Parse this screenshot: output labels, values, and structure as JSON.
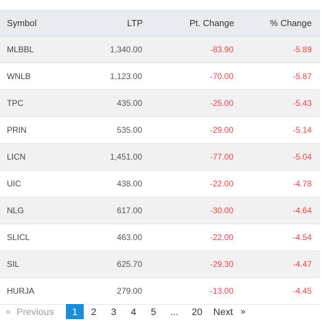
{
  "table": {
    "headers": {
      "symbol": "Symbol",
      "ltp": "LTP",
      "pt_change": "Pt. Change",
      "pct_change": "% Change"
    },
    "rows": [
      {
        "symbol": "MLBBL",
        "ltp": "1,340.00",
        "pt_change": "-83.90",
        "pct_change": "-5.89"
      },
      {
        "symbol": "WNLB",
        "ltp": "1,123.00",
        "pt_change": "-70.00",
        "pct_change": "-5.87"
      },
      {
        "symbol": "TPC",
        "ltp": "435.00",
        "pt_change": "-25.00",
        "pct_change": "-5.43"
      },
      {
        "symbol": "PRIN",
        "ltp": "535.00",
        "pt_change": "-29.00",
        "pct_change": "-5.14"
      },
      {
        "symbol": "LICN",
        "ltp": "1,451.00",
        "pt_change": "-77.00",
        "pct_change": "-5.04"
      },
      {
        "symbol": "UIC",
        "ltp": "438.00",
        "pt_change": "-22.00",
        "pct_change": "-4.78"
      },
      {
        "symbol": "NLG",
        "ltp": "617.00",
        "pt_change": "-30.00",
        "pct_change": "-4.64"
      },
      {
        "symbol": "SLICL",
        "ltp": "463.00",
        "pt_change": "-22.00",
        "pct_change": "-4.54"
      },
      {
        "symbol": "SIL",
        "ltp": "625.70",
        "pt_change": "-29.30",
        "pct_change": "-4.47"
      },
      {
        "symbol": "HURJA",
        "ltp": "279.00",
        "pt_change": "-13.00",
        "pct_change": "-4.45"
      }
    ]
  },
  "pagination": {
    "prev_arrow": "«",
    "prev_label": "Previous",
    "pages": [
      "1",
      "2",
      "3",
      "4",
      "5"
    ],
    "ellipsis": "...",
    "last_page": "20",
    "next_label": "Next",
    "next_arrow": "»",
    "active_page": "1"
  },
  "colors": {
    "negative": "#e2434a",
    "active_page": "#1a8ed6",
    "header_bg": "#e8ecf0",
    "stripe_bg": "#f1f1f1"
  }
}
